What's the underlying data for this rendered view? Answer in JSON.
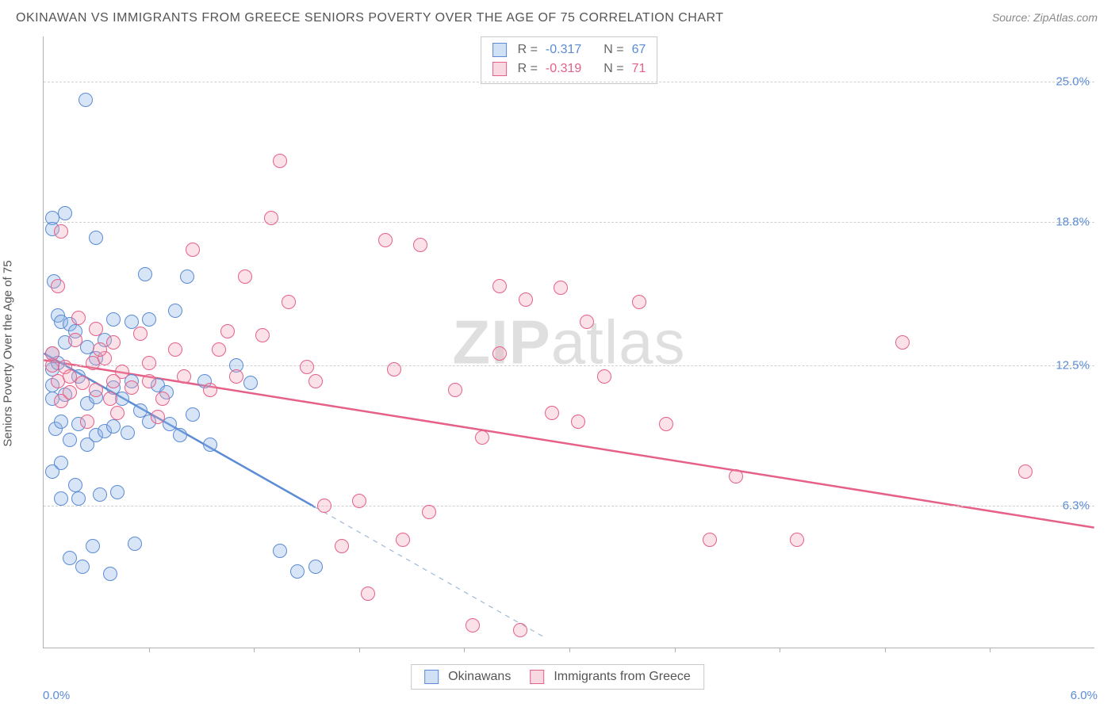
{
  "title": "OKINAWAN VS IMMIGRANTS FROM GREECE SENIORS POVERTY OVER THE AGE OF 75 CORRELATION CHART",
  "source": "Source: ZipAtlas.com",
  "ylabel": "Seniors Poverty Over the Age of 75",
  "watermark_zip": "ZIP",
  "watermark_atlas": "atlas",
  "chart": {
    "type": "scatter",
    "xlim": [
      0.0,
      6.0
    ],
    "ylim": [
      0.0,
      27.0
    ],
    "xtick_labels": {
      "min": "0.0%",
      "max": "6.0%"
    },
    "ytick_values": [
      6.3,
      12.5,
      18.8,
      25.0
    ],
    "ytick_labels": [
      "6.3%",
      "12.5%",
      "18.8%",
      "25.0%"
    ],
    "xtick_positions": [
      0.6,
      1.2,
      1.8,
      2.4,
      3.0,
      3.6,
      4.2,
      4.8,
      5.4
    ],
    "grid_color": "#d0d0d0",
    "axis_color": "#b0b0b0",
    "background_color": "#ffffff",
    "point_radius": 9,
    "series": [
      {
        "name": "Okinawans",
        "color_fill": "rgba(140,180,230,0.35)",
        "color_stroke": "#5b8bd4",
        "R": "-0.317",
        "N": "67",
        "trend": {
          "x1": 0.0,
          "y1": 13.0,
          "x2": 1.55,
          "y2": 6.2,
          "extend_to_x": 2.85,
          "stroke_width": 2.5
        },
        "points": [
          [
            0.05,
            13.0
          ],
          [
            0.05,
            12.3
          ],
          [
            0.05,
            11.6
          ],
          [
            0.05,
            19.0
          ],
          [
            0.05,
            18.5
          ],
          [
            0.05,
            11.0
          ],
          [
            0.05,
            7.8
          ],
          [
            0.06,
            16.2
          ],
          [
            0.07,
            9.7
          ],
          [
            0.08,
            14.7
          ],
          [
            0.08,
            12.6
          ],
          [
            0.1,
            14.4
          ],
          [
            0.1,
            10.0
          ],
          [
            0.1,
            8.2
          ],
          [
            0.1,
            6.6
          ],
          [
            0.12,
            19.2
          ],
          [
            0.12,
            13.5
          ],
          [
            0.12,
            11.2
          ],
          [
            0.15,
            14.3
          ],
          [
            0.15,
            9.2
          ],
          [
            0.18,
            14.0
          ],
          [
            0.18,
            7.2
          ],
          [
            0.2,
            12.0
          ],
          [
            0.2,
            9.9
          ],
          [
            0.2,
            6.6
          ],
          [
            0.22,
            3.6
          ],
          [
            0.24,
            24.2
          ],
          [
            0.25,
            13.3
          ],
          [
            0.25,
            10.8
          ],
          [
            0.25,
            9.0
          ],
          [
            0.28,
            4.5
          ],
          [
            0.3,
            18.1
          ],
          [
            0.3,
            12.8
          ],
          [
            0.3,
            11.1
          ],
          [
            0.3,
            9.4
          ],
          [
            0.32,
            6.8
          ],
          [
            0.35,
            13.6
          ],
          [
            0.35,
            9.6
          ],
          [
            0.38,
            3.3
          ],
          [
            0.4,
            14.5
          ],
          [
            0.4,
            11.5
          ],
          [
            0.4,
            9.8
          ],
          [
            0.42,
            6.9
          ],
          [
            0.45,
            11.0
          ],
          [
            0.48,
            9.5
          ],
          [
            0.5,
            14.4
          ],
          [
            0.5,
            11.8
          ],
          [
            0.52,
            4.6
          ],
          [
            0.55,
            10.5
          ],
          [
            0.58,
            16.5
          ],
          [
            0.6,
            14.5
          ],
          [
            0.6,
            10.0
          ],
          [
            0.65,
            11.6
          ],
          [
            0.7,
            11.3
          ],
          [
            0.72,
            9.9
          ],
          [
            0.75,
            14.9
          ],
          [
            0.78,
            9.4
          ],
          [
            0.82,
            16.4
          ],
          [
            0.85,
            10.3
          ],
          [
            0.92,
            11.8
          ],
          [
            0.95,
            9.0
          ],
          [
            1.1,
            12.5
          ],
          [
            1.18,
            11.7
          ],
          [
            1.35,
            4.3
          ],
          [
            1.45,
            3.4
          ],
          [
            1.55,
            3.6
          ],
          [
            0.15,
            4.0
          ]
        ]
      },
      {
        "name": "Immigrants from Greece",
        "color_fill": "rgba(240,160,180,0.3)",
        "color_stroke": "#e66088",
        "R": "-0.319",
        "N": "71",
        "trend": {
          "x1": 0.0,
          "y1": 12.7,
          "x2": 6.0,
          "y2": 5.3,
          "stroke_width": 2.5
        },
        "points": [
          [
            0.05,
            12.5
          ],
          [
            0.08,
            11.8
          ],
          [
            0.1,
            10.9
          ],
          [
            0.1,
            18.4
          ],
          [
            0.12,
            12.4
          ],
          [
            0.15,
            11.3
          ],
          [
            0.18,
            13.6
          ],
          [
            0.2,
            14.6
          ],
          [
            0.22,
            11.7
          ],
          [
            0.25,
            10.0
          ],
          [
            0.28,
            12.6
          ],
          [
            0.3,
            11.4
          ],
          [
            0.3,
            14.1
          ],
          [
            0.35,
            12.8
          ],
          [
            0.38,
            11.0
          ],
          [
            0.4,
            13.5
          ],
          [
            0.42,
            10.4
          ],
          [
            0.45,
            12.2
          ],
          [
            0.5,
            11.5
          ],
          [
            0.55,
            13.9
          ],
          [
            0.6,
            11.8
          ],
          [
            0.65,
            10.2
          ],
          [
            0.85,
            17.6
          ],
          [
            0.95,
            11.4
          ],
          [
            1.05,
            14.0
          ],
          [
            1.1,
            12.0
          ],
          [
            1.15,
            16.4
          ],
          [
            1.25,
            13.8
          ],
          [
            1.3,
            19.0
          ],
          [
            1.35,
            21.5
          ],
          [
            1.4,
            15.3
          ],
          [
            1.55,
            11.8
          ],
          [
            1.6,
            6.3
          ],
          [
            1.7,
            4.5
          ],
          [
            1.8,
            6.5
          ],
          [
            1.85,
            2.4
          ],
          [
            1.95,
            18.0
          ],
          [
            2.0,
            12.3
          ],
          [
            2.05,
            4.8
          ],
          [
            2.15,
            17.8
          ],
          [
            2.35,
            11.4
          ],
          [
            2.45,
            1.0
          ],
          [
            2.5,
            9.3
          ],
          [
            2.6,
            16.0
          ],
          [
            2.72,
            0.8
          ],
          [
            2.75,
            15.4
          ],
          [
            2.9,
            10.4
          ],
          [
            2.95,
            15.9
          ],
          [
            3.05,
            10.0
          ],
          [
            3.1,
            14.4
          ],
          [
            3.4,
            15.3
          ],
          [
            3.55,
            9.9
          ],
          [
            3.8,
            4.8
          ],
          [
            3.95,
            7.6
          ],
          [
            4.3,
            4.8
          ],
          [
            4.9,
            13.5
          ],
          [
            5.6,
            7.8
          ],
          [
            0.05,
            13.0
          ],
          [
            0.4,
            11.8
          ],
          [
            0.6,
            12.6
          ],
          [
            0.68,
            11.0
          ],
          [
            0.75,
            13.2
          ],
          [
            0.8,
            12.0
          ],
          [
            1.0,
            13.2
          ],
          [
            1.5,
            12.4
          ],
          [
            2.2,
            6.0
          ],
          [
            2.6,
            13.0
          ],
          [
            3.2,
            12.0
          ],
          [
            0.08,
            16.0
          ],
          [
            0.15,
            12.0
          ],
          [
            0.32,
            13.2
          ]
        ]
      }
    ]
  },
  "stats_box": {
    "r_label": "R =",
    "n_label": "N ="
  },
  "legend": {
    "series1": "Okinawans",
    "series2": "Immigrants from Greece"
  }
}
